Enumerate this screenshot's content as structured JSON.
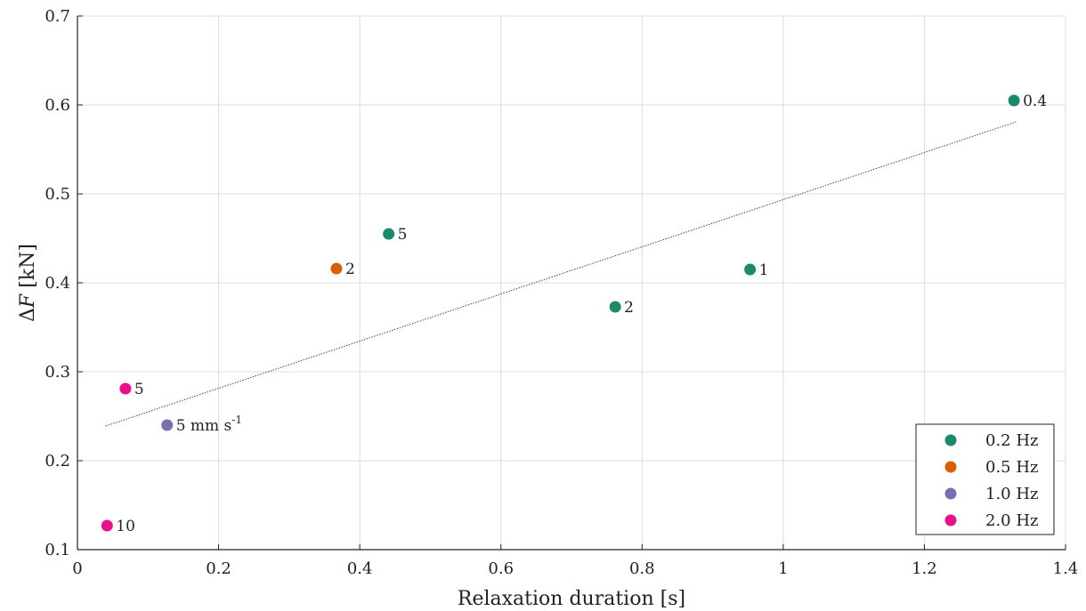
{
  "chart_data": {
    "type": "scatter",
    "xlabel": "Relaxation duration [s]",
    "ylabel": "ΔF [kN]",
    "xlim": [
      0,
      1.4
    ],
    "ylim": [
      0.1,
      0.7
    ],
    "x_ticks": [
      0,
      0.2,
      0.4,
      0.6,
      0.8,
      1,
      1.2,
      1.4
    ],
    "x_tick_labels": [
      "0",
      "0.2",
      "0.4",
      "0.6",
      "0.8",
      "1",
      "1.2",
      "1.4"
    ],
    "y_ticks": [
      0.1,
      0.2,
      0.3,
      0.4,
      0.5,
      0.6,
      0.7
    ],
    "y_tick_labels": [
      "0.1",
      "0.2",
      "0.3",
      "0.4",
      "0.5",
      "0.6",
      "0.7"
    ],
    "grid": true,
    "legend_position": "bottom-right",
    "series": [
      {
        "name": "0.2 Hz",
        "color": "#1b8a6b",
        "points": [
          {
            "x": 1.327,
            "y": 0.605,
            "label": "0.4"
          },
          {
            "x": 0.441,
            "y": 0.455,
            "label": "5"
          },
          {
            "x": 0.953,
            "y": 0.415,
            "label": "1"
          },
          {
            "x": 0.762,
            "y": 0.373,
            "label": "2"
          }
        ]
      },
      {
        "name": "0.5 Hz",
        "color": "#d95f02",
        "points": [
          {
            "x": 0.367,
            "y": 0.416,
            "label": "2"
          }
        ]
      },
      {
        "name": "1.0 Hz",
        "color": "#7570b3",
        "points": [
          {
            "x": 0.127,
            "y": 0.24,
            "label": "5 mm s",
            "label_sup": "-1"
          }
        ]
      },
      {
        "name": "2.0 Hz",
        "color": "#e7118b",
        "points": [
          {
            "x": 0.068,
            "y": 0.281,
            "label": "5"
          },
          {
            "x": 0.042,
            "y": 0.127,
            "label": "10"
          }
        ]
      }
    ],
    "trendline": {
      "x": [
        0.04,
        1.33
      ],
      "y": [
        0.239,
        0.581
      ],
      "style": "dotted",
      "color": "#444444"
    }
  }
}
